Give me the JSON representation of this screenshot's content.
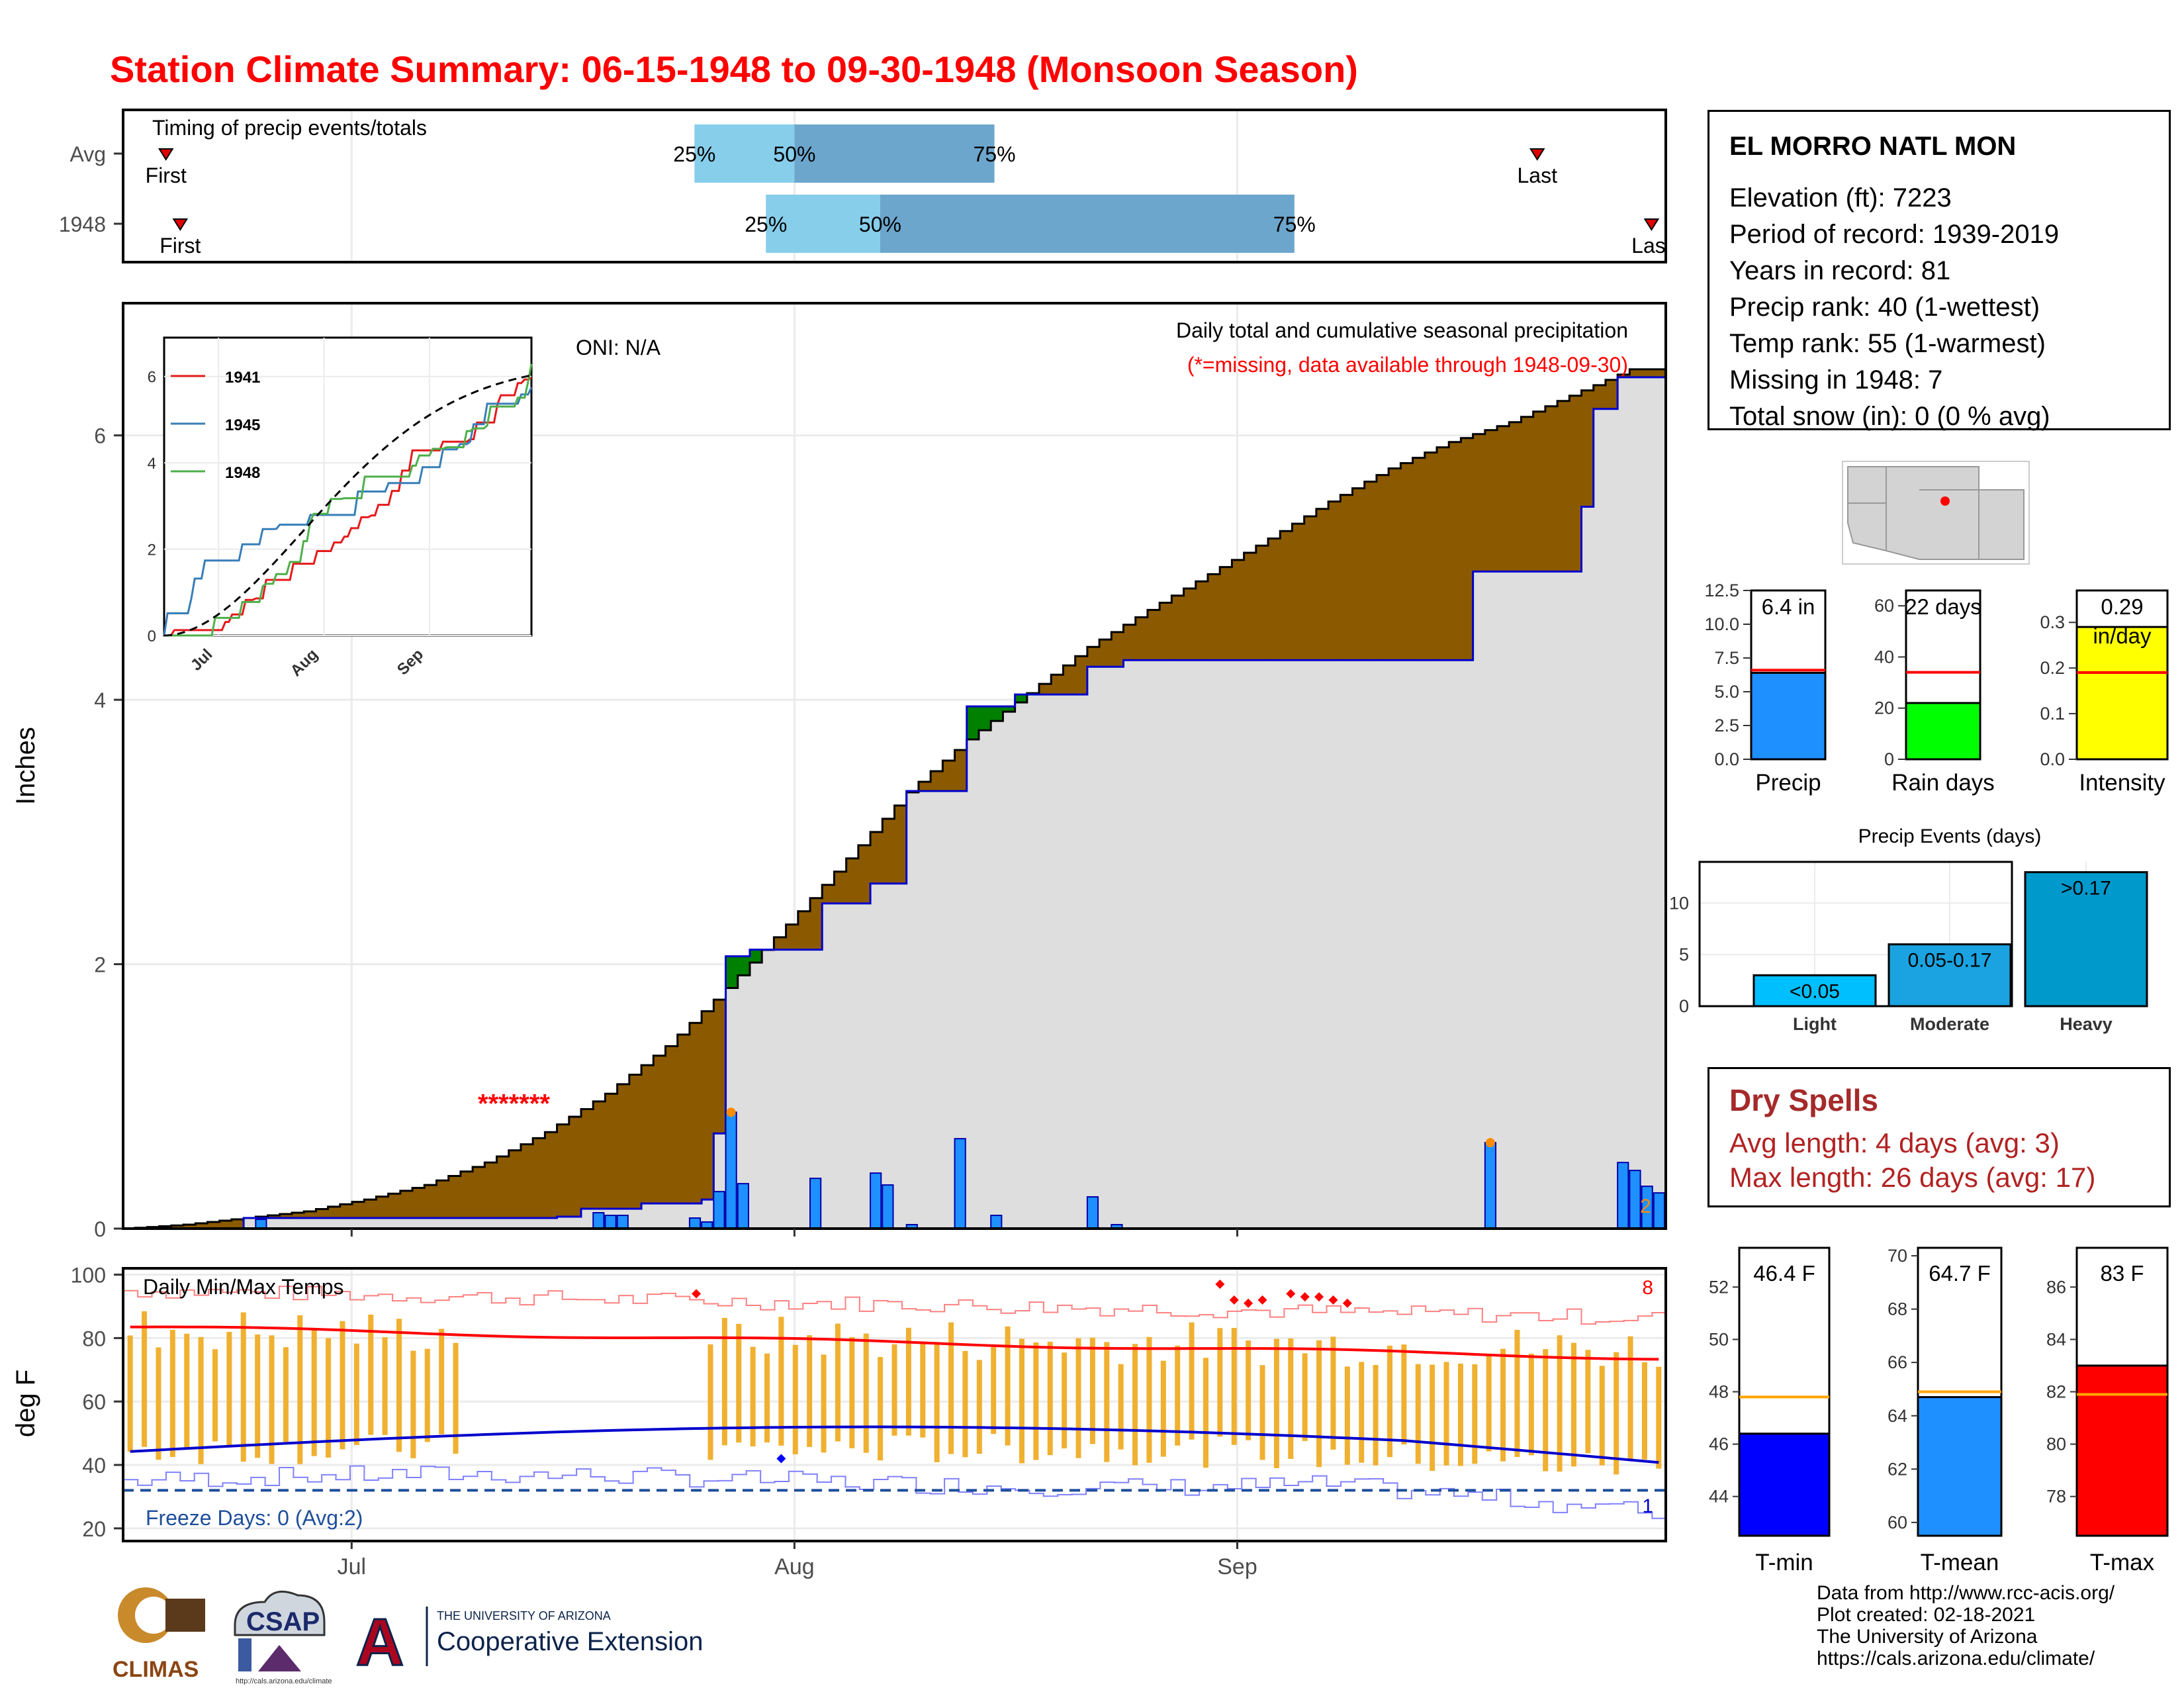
{
  "title": "Station Climate Summary: 06-15-1948 to 09-30-1948 (Monsoon Season)",
  "station": {
    "name": "EL MORRO NATL MON",
    "lines": [
      "Elevation (ft): 7223",
      "Period of record: 1939-2019",
      "Years in record: 81",
      "Precip rank: 40 (1-wettest)",
      "Temp rank: 55 (1-warmest)",
      "Missing in 1948: 7",
      "Total snow (in): 0 (0 % avg)"
    ]
  },
  "dry_spells": {
    "title": "Dry Spells",
    "avg": "Avg length: 4 days (avg: 3)",
    "max": "Max length: 26 days (avg: 17)"
  },
  "credits": [
    "Data from http://www.rcc-acis.org/",
    "Plot created: 02-18-2021",
    "The University of Arizona",
    "https://cals.arizona.edu/climate/"
  ],
  "logos": {
    "climas": "CLIMAS",
    "csap": "CSAP",
    "csap_url": "http://cals.arizona.edu/climate",
    "ua_line1": "THE UNIVERSITY OF ARIZONA",
    "ua_line2": "Cooperative Extension",
    "ua_letter": "A"
  },
  "colors": {
    "title": "#ff0000",
    "brown": "#8b5a00",
    "green": "#008000",
    "bars": "#1e90ff",
    "grey_fill": "#dedede",
    "tmax": "#ff0000",
    "tmin": "#0000cd",
    "temp_bars": "#f0b030",
    "timing_light": "#87ceeb",
    "timing_dark": "#6ca6cd",
    "intensity": "#ffff00",
    "rain_days": "#00ff00",
    "events": "#0099cc"
  },
  "chart_data": [
    {
      "type": "bar",
      "name": "timing",
      "label": "Timing of precip events/totals",
      "rows": [
        "Avg",
        "1948"
      ],
      "avg": {
        "first": "06-18",
        "p25": "07-25",
        "p50": "08-01",
        "p75": "08-15",
        "last": "09-22",
        "first_label": "First",
        "last_label": "Last",
        "p25_label": "25%",
        "p50_label": "50%",
        "p75_label": "75%"
      },
      "y1948": {
        "first": "06-19",
        "p25": "07-30",
        "p50": "08-07",
        "p75": "09-05",
        "last": "09-30",
        "first_label": "First",
        "last_label": "Last",
        "p25_label": "25%",
        "p50_label": "50%",
        "p75_label": "75%"
      }
    },
    {
      "type": "area",
      "name": "cumulative-precip",
      "annotation_title": "Daily total and cumulative seasonal precipitation",
      "annotation_sub": "(*=missing, data available through 1948-09-30)",
      "oni": "ONI: N/A",
      "ylabel": "Inches",
      "yticks": [
        "0",
        "2",
        "4",
        "6"
      ],
      "ylim": [
        0,
        7
      ],
      "xticks": [
        "Jul",
        "Aug",
        "Sep"
      ],
      "missing_marker": "*******",
      "missing_label_count": "2",
      "avg_cumulative": [
        [
          0,
          0
        ],
        [
          5,
          0.03
        ],
        [
          10,
          0.08
        ],
        [
          15,
          0.13
        ],
        [
          20,
          0.22
        ],
        [
          25,
          0.33
        ],
        [
          30,
          0.5
        ],
        [
          35,
          0.73
        ],
        [
          40,
          1.02
        ],
        [
          45,
          1.38
        ],
        [
          50,
          1.82
        ],
        [
          55,
          2.3
        ],
        [
          60,
          2.8
        ],
        [
          65,
          3.3
        ],
        [
          70,
          3.7
        ],
        [
          75,
          4.05
        ],
        [
          80,
          4.4
        ],
        [
          85,
          4.68
        ],
        [
          90,
          4.95
        ],
        [
          95,
          5.22
        ],
        [
          100,
          5.5
        ],
        [
          105,
          5.75
        ],
        [
          110,
          5.95
        ],
        [
          115,
          6.1
        ],
        [
          120,
          6.3
        ],
        [
          125,
          6.5
        ],
        [
          128,
          6.5
        ]
      ],
      "year_cumulative": [
        [
          0,
          0
        ],
        [
          10,
          0.08
        ],
        [
          11,
          0.08
        ],
        [
          36,
          0.09
        ],
        [
          38,
          0.15
        ],
        [
          43,
          0.19
        ],
        [
          48,
          0.22
        ],
        [
          49,
          0.72
        ],
        [
          50,
          2.06
        ],
        [
          52,
          2.11
        ],
        [
          58,
          2.46
        ],
        [
          62,
          2.61
        ],
        [
          65,
          3.31
        ],
        [
          70,
          3.95
        ],
        [
          74,
          4.04
        ],
        [
          80,
          4.25
        ],
        [
          83,
          4.3
        ],
        [
          111,
          4.3
        ],
        [
          112,
          4.97
        ],
        [
          120,
          4.97
        ],
        [
          121,
          5.46
        ],
        [
          122,
          6.2
        ],
        [
          124,
          6.44
        ],
        [
          128,
          6.44
        ]
      ],
      "daily_bars": [
        [
          11,
          0.07
        ],
        [
          39,
          0.12
        ],
        [
          40,
          0.1
        ],
        [
          41,
          0.1
        ],
        [
          47,
          0.08
        ],
        [
          48,
          0.05
        ],
        [
          49,
          0.28
        ],
        [
          50,
          0.88
        ],
        [
          51,
          0.34
        ],
        [
          57,
          0.38
        ],
        [
          62,
          0.42
        ],
        [
          63,
          0.33
        ],
        [
          65,
          0.03
        ],
        [
          69,
          0.68
        ],
        [
          72,
          0.1
        ],
        [
          80,
          0.24
        ],
        [
          82,
          0.03
        ],
        [
          113,
          0.65
        ],
        [
          124,
          0.5
        ],
        [
          125,
          0.44
        ],
        [
          126,
          0.32
        ],
        [
          127,
          0.27
        ]
      ],
      "inset": {
        "type": "line",
        "series": [
          {
            "name": "1941"
          },
          {
            "name": "1945"
          },
          {
            "name": "1948"
          }
        ],
        "yticks": [
          "0",
          "2",
          "4",
          "6"
        ],
        "xticks": [
          "Jul",
          "Aug",
          "Sep"
        ]
      }
    },
    {
      "type": "line",
      "name": "daily-temps",
      "label": "Daily Min/Max Temps",
      "ylabel": "deg F",
      "yticks": [
        "20",
        "40",
        "60",
        "80",
        "100"
      ],
      "freeze": "Freeze Days: 0 (Avg:2)",
      "record_high_count": "8",
      "record_low_count": "1"
    },
    {
      "type": "bar",
      "name": "precip-gauges",
      "items": [
        {
          "label": "Precip",
          "value": 6.4,
          "avg": 6.6,
          "text": "6.4 in",
          "yticks": [
            "0.0",
            "2.5",
            "5.0",
            "7.5",
            "10.0",
            "12.5"
          ],
          "ymax": 12.5
        },
        {
          "label": "Rain days",
          "value": 22,
          "avg": 34,
          "text": "22 days",
          "yticks": [
            "0",
            "20",
            "40",
            "60"
          ],
          "ymax": 66
        },
        {
          "label": "Intensity",
          "value": 0.29,
          "avg": 0.19,
          "text": "0.29",
          "sub": "in/day",
          "yticks": [
            "0.0",
            "0.1",
            "0.2",
            "0.3"
          ],
          "ymax": 0.37
        }
      ]
    },
    {
      "type": "bar",
      "name": "precip-events",
      "title": "Precip Events (days)",
      "categories": [
        "Light",
        "Moderate",
        "Heavy"
      ],
      "values": [
        3,
        6,
        13
      ],
      "bar_labels": [
        "<0.05",
        "0.05-0.17",
        ">0.17"
      ],
      "yticks": [
        "0",
        "5",
        "10"
      ],
      "ymax": 14
    },
    {
      "type": "bar",
      "name": "temp-gauges",
      "items": [
        {
          "label": "T-min",
          "value": 46.4,
          "avg": 47.8,
          "text": "46.4 F",
          "yticks": [
            "44",
            "46",
            "48",
            "50",
            "52"
          ],
          "min": 42.5,
          "max": 53.5
        },
        {
          "label": "T-mean",
          "value": 64.7,
          "avg": 64.9,
          "text": "64.7 F",
          "yticks": [
            "60",
            "62",
            "64",
            "66",
            "68",
            "70"
          ],
          "min": 59.5,
          "max": 70.3
        },
        {
          "label": "T-max",
          "value": 83,
          "avg": 81.9,
          "text": "83 F",
          "yticks": [
            "78",
            "80",
            "82",
            "84",
            "86"
          ],
          "min": 76.5,
          "max": 87.5
        }
      ]
    }
  ]
}
